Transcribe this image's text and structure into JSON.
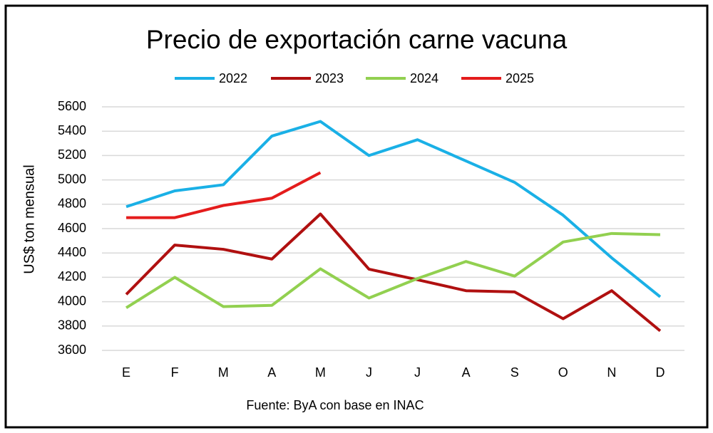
{
  "chart_data": {
    "type": "line",
    "title": "Precio de exportación carne vacuna",
    "y_label": "US$ ton mensual",
    "source": "Fuente: ByA con base en INAC",
    "categories": [
      "E",
      "F",
      "M",
      "A",
      "M",
      "J",
      "J",
      "A",
      "S",
      "O",
      "N",
      "D"
    ],
    "series": [
      {
        "name": "2022",
        "color": "#1ab0e6",
        "values": [
          4780,
          4910,
          4960,
          5360,
          5480,
          5200,
          5330,
          5155,
          4980,
          4710,
          4360,
          4040
        ]
      },
      {
        "name": "2023",
        "color": "#b01010",
        "values": [
          4060,
          4465,
          4430,
          4350,
          4720,
          4267,
          4180,
          4090,
          4080,
          3860,
          4090,
          3760
        ]
      },
      {
        "name": "2024",
        "color": "#92d050",
        "values": [
          3950,
          4200,
          3960,
          3970,
          4270,
          4030,
          4190,
          4330,
          4210,
          4490,
          4560,
          4550
        ]
      },
      {
        "name": "2025",
        "color": "#e41c1c",
        "values": [
          4690,
          4690,
          4790,
          4850,
          5060,
          null,
          null,
          null,
          null,
          null,
          null,
          null
        ]
      }
    ],
    "ylim": [
      3600,
      5600
    ],
    "yticks": [
      3600,
      3800,
      4000,
      4200,
      4400,
      4600,
      4800,
      5000,
      5200,
      5400,
      5600
    ],
    "grid": true,
    "legend": "top"
  }
}
